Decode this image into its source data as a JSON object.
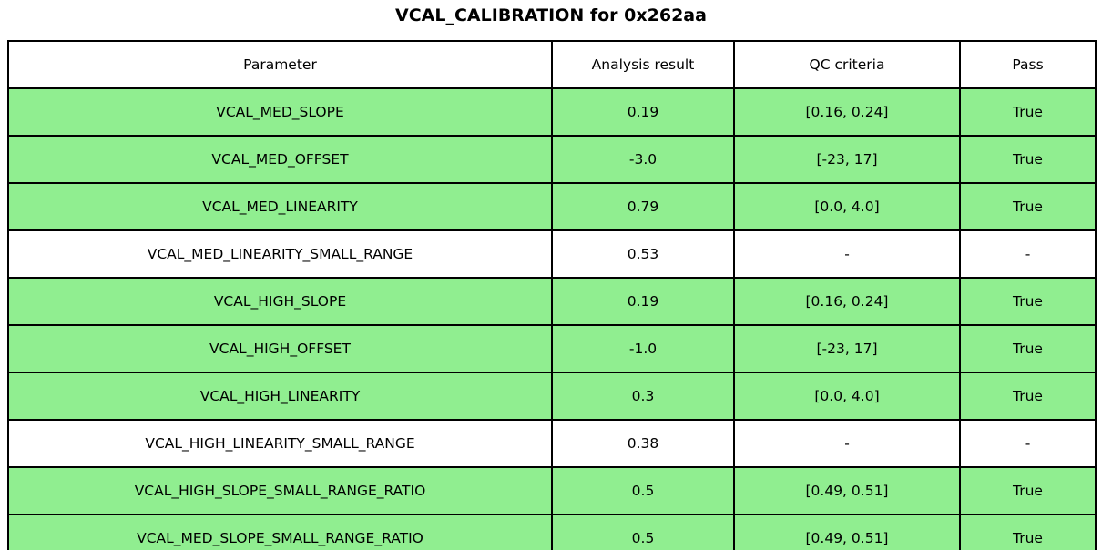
{
  "title": "VCAL_CALIBRATION for 0x262aa",
  "colors": {
    "pass_row_bg": "#90ee90",
    "neutral_row_bg": "#ffffff",
    "border": "#000000",
    "text": "#000000"
  },
  "table": {
    "headers": [
      "Parameter",
      "Analysis result",
      "QC criteria",
      "Pass"
    ],
    "rows": [
      {
        "parameter": "VCAL_MED_SLOPE",
        "analysis_result": "0.19",
        "qc_criteria": "[0.16, 0.24]",
        "pass": "True",
        "highlight": true
      },
      {
        "parameter": "VCAL_MED_OFFSET",
        "analysis_result": "-3.0",
        "qc_criteria": "[-23, 17]",
        "pass": "True",
        "highlight": true
      },
      {
        "parameter": "VCAL_MED_LINEARITY",
        "analysis_result": "0.79",
        "qc_criteria": "[0.0, 4.0]",
        "pass": "True",
        "highlight": true
      },
      {
        "parameter": "VCAL_MED_LINEARITY_SMALL_RANGE",
        "analysis_result": "0.53",
        "qc_criteria": "-",
        "pass": "-",
        "highlight": false
      },
      {
        "parameter": "VCAL_HIGH_SLOPE",
        "analysis_result": "0.19",
        "qc_criteria": "[0.16, 0.24]",
        "pass": "True",
        "highlight": true
      },
      {
        "parameter": "VCAL_HIGH_OFFSET",
        "analysis_result": "-1.0",
        "qc_criteria": "[-23, 17]",
        "pass": "True",
        "highlight": true
      },
      {
        "parameter": "VCAL_HIGH_LINEARITY",
        "analysis_result": "0.3",
        "qc_criteria": "[0.0, 4.0]",
        "pass": "True",
        "highlight": true
      },
      {
        "parameter": "VCAL_HIGH_LINEARITY_SMALL_RANGE",
        "analysis_result": "0.38",
        "qc_criteria": "-",
        "pass": "-",
        "highlight": false
      },
      {
        "parameter": "VCAL_HIGH_SLOPE_SMALL_RANGE_RATIO",
        "analysis_result": "0.5",
        "qc_criteria": "[0.49, 0.51]",
        "pass": "True",
        "highlight": true
      },
      {
        "parameter": "VCAL_MED_SLOPE_SMALL_RANGE_RATIO",
        "analysis_result": "0.5",
        "qc_criteria": "[0.49, 0.51]",
        "pass": "True",
        "highlight": true
      }
    ]
  },
  "chart_data": {
    "type": "table",
    "title": "VCAL_CALIBRATION for 0x262aa",
    "columns": [
      "Parameter",
      "Analysis result",
      "QC criteria",
      "Pass"
    ],
    "rows": [
      [
        "VCAL_MED_SLOPE",
        "0.19",
        "[0.16, 0.24]",
        "True"
      ],
      [
        "VCAL_MED_OFFSET",
        "-3.0",
        "[-23, 17]",
        "True"
      ],
      [
        "VCAL_MED_LINEARITY",
        "0.79",
        "[0.0, 4.0]",
        "True"
      ],
      [
        "VCAL_MED_LINEARITY_SMALL_RANGE",
        "0.53",
        "-",
        "-"
      ],
      [
        "VCAL_HIGH_SLOPE",
        "0.19",
        "[0.16, 0.24]",
        "True"
      ],
      [
        "VCAL_HIGH_OFFSET",
        "-1.0",
        "[-23, 17]",
        "True"
      ],
      [
        "VCAL_HIGH_LINEARITY",
        "0.3",
        "[0.0, 4.0]",
        "True"
      ],
      [
        "VCAL_HIGH_LINEARITY_SMALL_RANGE",
        "0.38",
        "-",
        "-"
      ],
      [
        "VCAL_HIGH_SLOPE_SMALL_RANGE_RATIO",
        "0.5",
        "[0.49, 0.51]",
        "True"
      ],
      [
        "VCAL_MED_SLOPE_SMALL_RANGE_RATIO",
        "0.5",
        "[0.49, 0.51]",
        "True"
      ]
    ],
    "row_highlighted_green": [
      true,
      true,
      true,
      false,
      true,
      true,
      true,
      false,
      true,
      true
    ],
    "legend_position": "none",
    "grid": true
  }
}
